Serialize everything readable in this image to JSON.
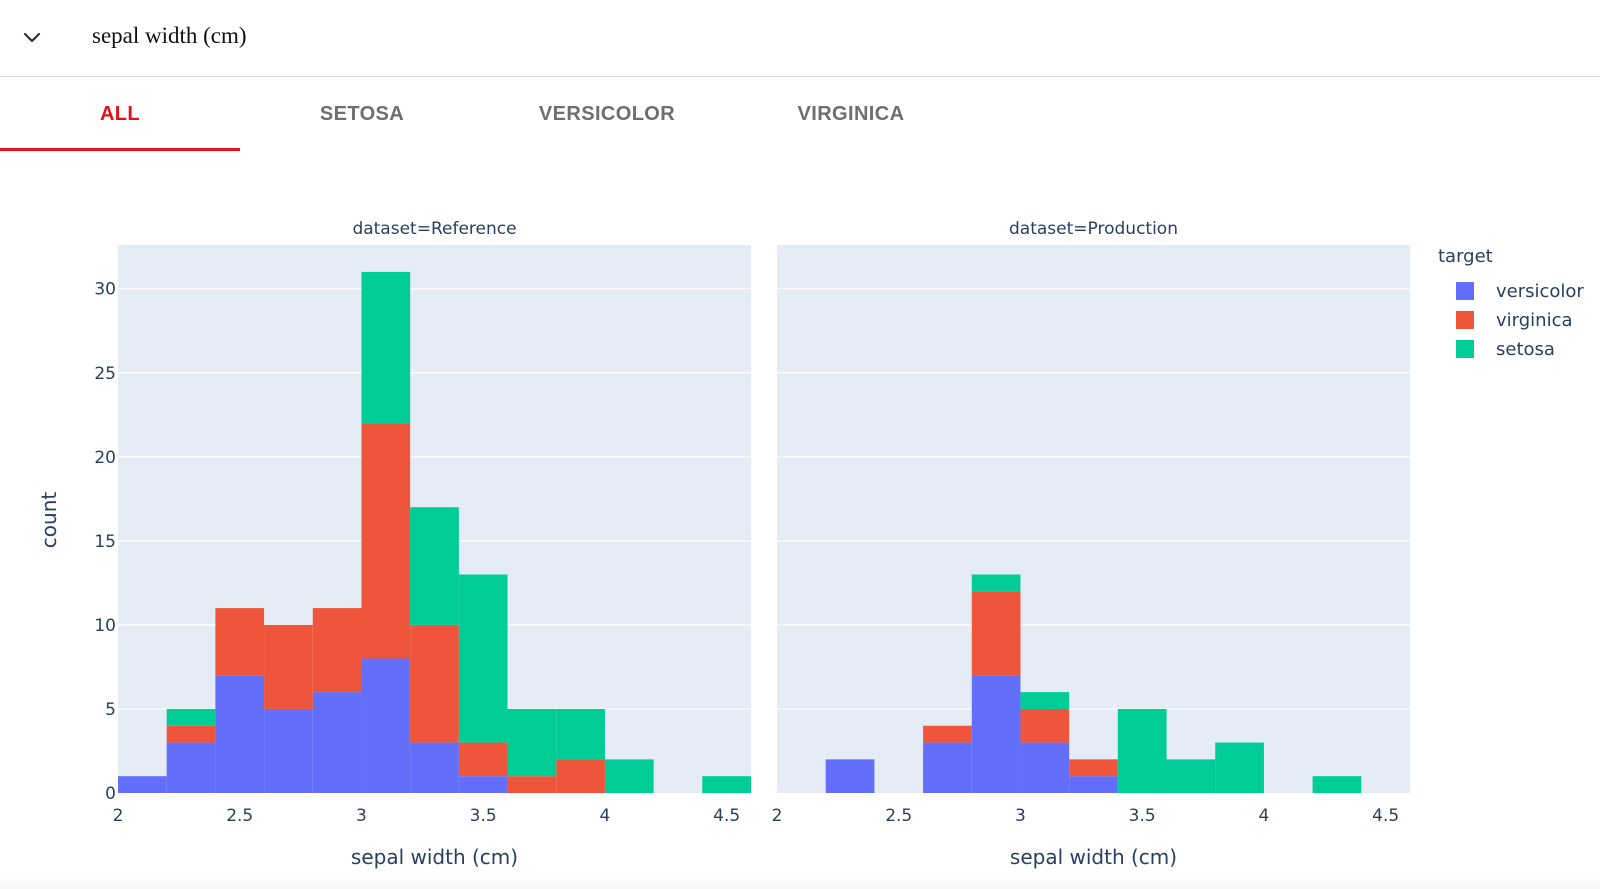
{
  "header": {
    "title": "sepal width (cm)",
    "toggle_icon": "chevron-down-icon"
  },
  "tabs": [
    {
      "label": "ALL",
      "active": true
    },
    {
      "label": "SETOSA",
      "active": false
    },
    {
      "label": "VERSICOLOR",
      "active": false
    },
    {
      "label": "VIRGINICA",
      "active": false
    }
  ],
  "colors": {
    "accent": "#e3121a",
    "plot_bg": "#e5ecf6",
    "versicolor": "#636efa",
    "virginica": "#ef553b",
    "setosa": "#00cc96",
    "axis_text": "#2a3f5f"
  },
  "chart_data": {
    "type": "bar",
    "mode": "stacked-histogram",
    "ylabel": "count",
    "xlabel": "sepal width (cm)",
    "xlim": [
      2,
      4.6
    ],
    "ylim": [
      0,
      32.6
    ],
    "bin_width": 0.2,
    "bins": [
      2.0,
      2.2,
      2.4,
      2.6,
      2.8,
      3.0,
      3.2,
      3.4,
      3.6,
      3.8,
      4.0,
      4.2,
      4.4
    ],
    "x_ticks": [
      "2",
      "2.5",
      "3",
      "3.5",
      "4",
      "4.5"
    ],
    "y_ticks": [
      "0",
      "5",
      "10",
      "15",
      "20",
      "25",
      "30"
    ],
    "legend": {
      "title": "target",
      "position": "right",
      "entries": [
        "versicolor",
        "virginica",
        "setosa"
      ]
    },
    "panels": [
      {
        "title": "dataset=Reference",
        "series": [
          {
            "name": "versicolor",
            "values": [
              1,
              3,
              7,
              5,
              6,
              8,
              3,
              1,
              0,
              0,
              0,
              0,
              0
            ]
          },
          {
            "name": "virginica",
            "values": [
              0,
              1,
              4,
              5,
              5,
              14,
              7,
              2,
              1,
              2,
              0,
              0,
              0
            ]
          },
          {
            "name": "setosa",
            "values": [
              0,
              1,
              0,
              0,
              0,
              9,
              7,
              10,
              4,
              3,
              2,
              0,
              1
            ]
          }
        ]
      },
      {
        "title": "dataset=Production",
        "series": [
          {
            "name": "versicolor",
            "values": [
              0,
              2,
              0,
              3,
              7,
              3,
              1,
              0,
              0,
              0,
              0,
              0,
              0
            ]
          },
          {
            "name": "virginica",
            "values": [
              0,
              0,
              0,
              1,
              5,
              2,
              1,
              0,
              0,
              0,
              0,
              0,
              0
            ]
          },
          {
            "name": "setosa",
            "values": [
              0,
              0,
              0,
              0,
              1,
              1,
              0,
              5,
              2,
              3,
              0,
              1,
              0
            ]
          }
        ]
      }
    ]
  }
}
